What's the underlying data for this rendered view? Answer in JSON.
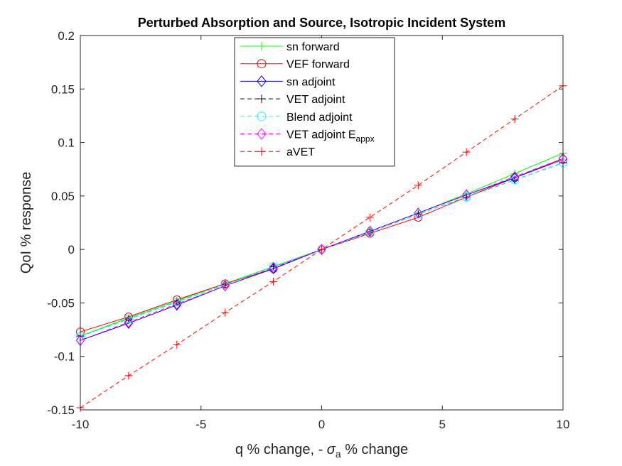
{
  "chart_data": {
    "type": "line",
    "title": "Perturbed Absorption and Source, Isotropic Incident System",
    "xlabel": {
      "main": "q % change, - ",
      "symbol": "σ",
      "subscript": "a",
      "tail": " % change"
    },
    "ylabel": "QoI % response",
    "xlim": [
      -10,
      10
    ],
    "ylim": [
      -0.15,
      0.2
    ],
    "xticks": [
      -10,
      -5,
      0,
      5,
      10
    ],
    "xtick_labels": [
      "-10",
      "-5",
      "0",
      "5",
      "10"
    ],
    "yticks": [
      -0.15,
      -0.1,
      -0.05,
      0,
      0.05,
      0.1,
      0.15,
      0.2
    ],
    "ytick_labels": [
      "-0.15",
      "-0.1",
      "-0.05",
      "0",
      "0.05",
      "0.1",
      "0.15",
      "0.2"
    ],
    "grid": false,
    "legend_position": "top-center",
    "x": [
      -10,
      -8,
      -6,
      -4,
      -2,
      0,
      2,
      4,
      6,
      8,
      10
    ],
    "series": [
      {
        "name": "sn forward",
        "legend_sub": "",
        "color": "#00ff00",
        "dash": "solid",
        "marker": "plus",
        "values": [
          -0.081,
          -0.064,
          -0.048,
          -0.032,
          -0.016,
          0,
          0.017,
          0.034,
          0.052,
          0.071,
          0.09
        ]
      },
      {
        "name": "VEF forward",
        "legend_sub": "",
        "color": "#ff0000",
        "dash": "solid",
        "marker": "circle",
        "values": [
          -0.077,
          -0.063,
          -0.047,
          -0.032,
          -0.018,
          0,
          0.015,
          0.03,
          0.049,
          0.067,
          0.084
        ]
      },
      {
        "name": "sn adjoint",
        "legend_sub": "",
        "color": "#0000ff",
        "dash": "solid",
        "marker": "diamond",
        "values": [
          -0.085,
          -0.069,
          -0.052,
          -0.034,
          -0.018,
          0,
          0.017,
          0.034,
          0.051,
          0.067,
          0.085
        ]
      },
      {
        "name": "VET adjoint",
        "legend_sub": "",
        "color": "#000000",
        "dash": "dash",
        "marker": "plus",
        "values": [
          -0.081,
          -0.065,
          -0.049,
          -0.033,
          -0.016,
          0,
          0.016,
          0.033,
          0.049,
          0.065,
          0.081
        ]
      },
      {
        "name": "Blend adjoint",
        "legend_sub": "",
        "color": "#00ffff",
        "dash": "dash",
        "marker": "circle",
        "values": [
          -0.081,
          -0.065,
          -0.049,
          -0.033,
          -0.016,
          0,
          0.016,
          0.033,
          0.049,
          0.065,
          0.081
        ]
      },
      {
        "name": "VET adjoint E",
        "legend_sub": "appx",
        "color": "#ff00ff",
        "dash": "dash",
        "marker": "diamond",
        "values": [
          -0.085,
          -0.068,
          -0.051,
          -0.034,
          -0.017,
          0,
          0.017,
          0.034,
          0.051,
          0.068,
          0.085
        ]
      },
      {
        "name": "aVET",
        "legend_sub": "",
        "color": "#ff0000",
        "dash": "dash",
        "marker": "plus",
        "values": [
          -0.148,
          -0.118,
          -0.089,
          -0.059,
          -0.03,
          0,
          0.03,
          0.06,
          0.091,
          0.122,
          0.153
        ]
      }
    ]
  }
}
